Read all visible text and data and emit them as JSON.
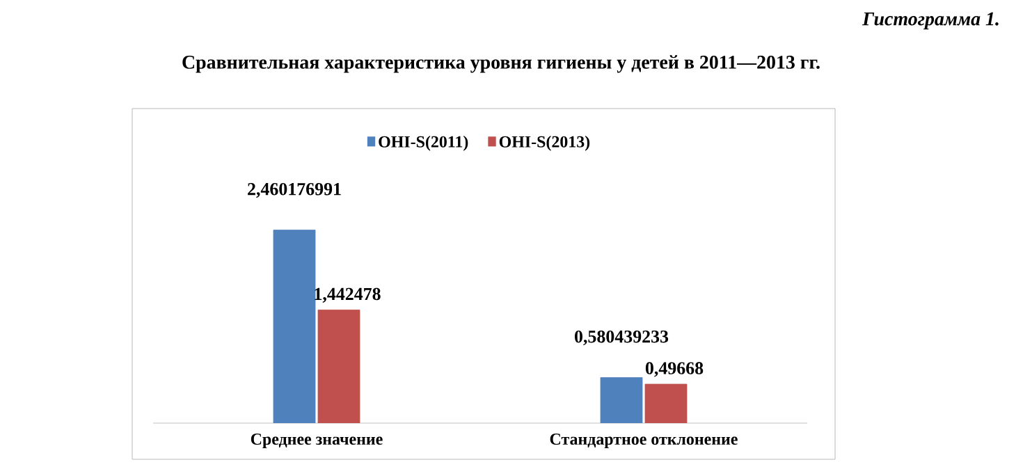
{
  "chart_data": {
    "type": "bar",
    "title": "Сравнительная характеристика уровня гигиены у детей в 2011—2013 гг.",
    "annotations": [
      "Гистограмма 1."
    ],
    "categories": [
      "Среднее значение",
      "Стандартное отклонение"
    ],
    "series": [
      {
        "name": "OHI-S(2011)",
        "color": "#4f81bd",
        "values": [
          2.460176991,
          0.580439233
        ],
        "value_labels": [
          "2,460176991",
          "0,580439233"
        ]
      },
      {
        "name": "OHI-S(2013)",
        "color": "#c0504d",
        "values": [
          1.442478,
          0.49668
        ],
        "value_labels": [
          "1,442478",
          "0,49668"
        ]
      }
    ],
    "legend": "top"
  }
}
